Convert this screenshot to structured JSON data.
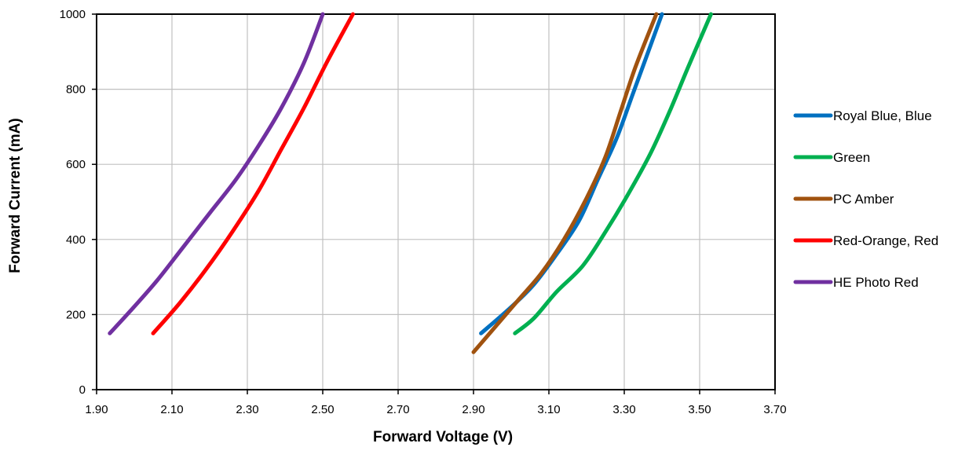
{
  "chart_data": {
    "type": "line",
    "title": "",
    "xlabel": "Forward Voltage (V)",
    "ylabel": "Forward Current (mA)",
    "xlim": [
      1.9,
      3.7
    ],
    "ylim": [
      0,
      1000
    ],
    "x_ticks": [
      "1.90",
      "2.10",
      "2.30",
      "2.50",
      "2.70",
      "2.90",
      "3.10",
      "3.30",
      "3.50",
      "3.70"
    ],
    "y_ticks": [
      "0",
      "200",
      "400",
      "600",
      "800",
      "1000"
    ],
    "grid": true,
    "legend_position": "right",
    "series": [
      {
        "name": "Royal Blue, Blue",
        "color": "#0070C0",
        "points": [
          [
            2.92,
            150
          ],
          [
            3.0,
            220
          ],
          [
            3.06,
            280
          ],
          [
            3.12,
            360
          ],
          [
            3.18,
            450
          ],
          [
            3.23,
            560
          ],
          [
            3.28,
            670
          ],
          [
            3.32,
            780
          ],
          [
            3.36,
            890
          ],
          [
            3.4,
            1000
          ]
        ]
      },
      {
        "name": "Green",
        "color": "#00B050",
        "points": [
          [
            3.01,
            150
          ],
          [
            3.06,
            190
          ],
          [
            3.12,
            260
          ],
          [
            3.19,
            330
          ],
          [
            3.25,
            420
          ],
          [
            3.31,
            520
          ],
          [
            3.37,
            630
          ],
          [
            3.42,
            740
          ],
          [
            3.47,
            860
          ],
          [
            3.53,
            1000
          ]
        ]
      },
      {
        "name": "PC Amber",
        "color": "#A0520F",
        "points": [
          [
            2.9,
            100
          ],
          [
            2.96,
            170
          ],
          [
            3.02,
            240
          ],
          [
            3.08,
            310
          ],
          [
            3.14,
            400
          ],
          [
            3.2,
            510
          ],
          [
            3.25,
            620
          ],
          [
            3.29,
            740
          ],
          [
            3.33,
            860
          ],
          [
            3.385,
            1000
          ]
        ]
      },
      {
        "name": "Red-Orange, Red",
        "color": "#FF0000",
        "points": [
          [
            2.05,
            150
          ],
          [
            2.12,
            230
          ],
          [
            2.19,
            320
          ],
          [
            2.26,
            420
          ],
          [
            2.33,
            530
          ],
          [
            2.39,
            640
          ],
          [
            2.45,
            750
          ],
          [
            2.51,
            870
          ],
          [
            2.58,
            1000
          ]
        ]
      },
      {
        "name": "HE Photo Red",
        "color": "#7030A0",
        "points": [
          [
            1.935,
            150
          ],
          [
            1.99,
            210
          ],
          [
            2.06,
            290
          ],
          [
            2.13,
            380
          ],
          [
            2.2,
            470
          ],
          [
            2.27,
            560
          ],
          [
            2.33,
            650
          ],
          [
            2.39,
            750
          ],
          [
            2.45,
            870
          ],
          [
            2.5,
            1000
          ]
        ]
      }
    ]
  }
}
